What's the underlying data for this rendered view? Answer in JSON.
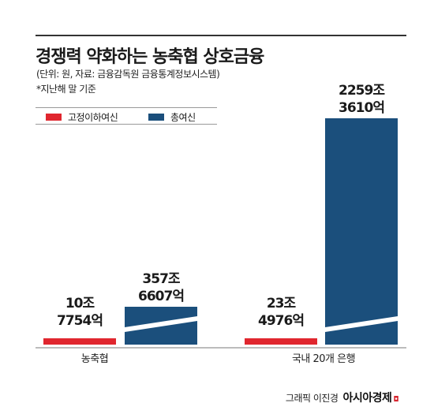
{
  "header": {
    "title": "경쟁력 약화하는 농축협 상호금융",
    "subtitle": "(단위: 원, 자료: 금융감독원 금융통계정보시스템)",
    "note": "*지난해 말 기준"
  },
  "colors": {
    "fixed": "#e0262e",
    "total": "#1b4f7c",
    "axis": "#7a7a7a"
  },
  "legend": {
    "fixed_label": "고정이하여신",
    "total_label": "총여신"
  },
  "chart_data": {
    "type": "bar",
    "title": "경쟁력 약화하는 농축협 상호금융",
    "categories": [
      "농축협",
      "국내 20개 은행"
    ],
    "axis_break": true,
    "series": [
      {
        "name": "고정이하여신",
        "values": [
          107754,
          234976
        ],
        "labels": [
          [
            "10조",
            "7754억"
          ],
          [
            "23조",
            "4976억"
          ]
        ]
      },
      {
        "name": "총여신",
        "values": [
          3576607,
          22593610
        ],
        "labels": [
          [
            "357조",
            "6607억"
          ],
          [
            "2259조",
            "3610억"
          ]
        ]
      }
    ]
  },
  "footer": {
    "credit": "그래픽 이진경",
    "brand": "아시아경제"
  }
}
